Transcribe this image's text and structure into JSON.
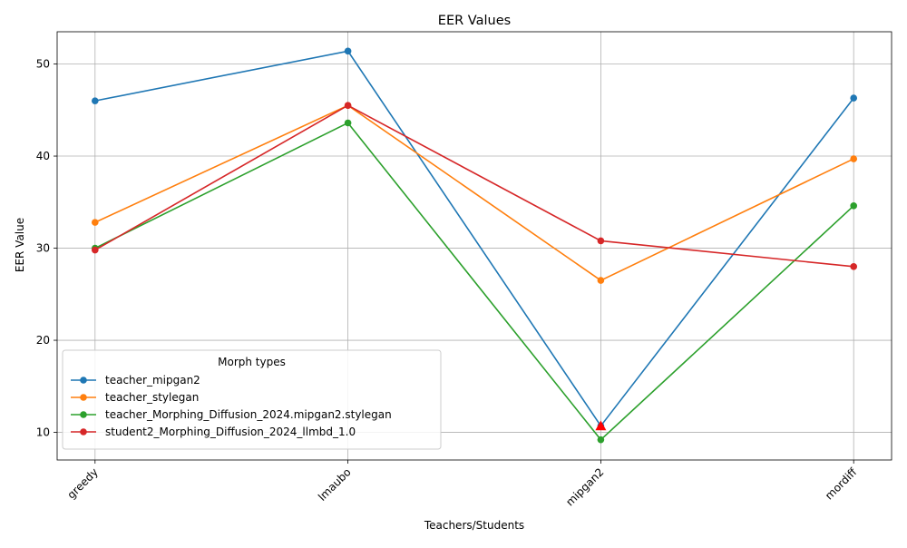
{
  "chart_data": {
    "type": "line",
    "title": "EER Values",
    "xlabel": "Teachers/Students",
    "ylabel": "EER Value",
    "categories": [
      "greedy",
      "lmaubo",
      "mipgan2",
      "mordiff"
    ],
    "ylim": [
      7.0,
      53.5
    ],
    "yticks": [
      10,
      20,
      30,
      40,
      50
    ],
    "grid": true,
    "legend": {
      "title": "Morph types",
      "placement": "lower-left"
    },
    "series": [
      {
        "name": "teacher_mipgan2",
        "color": "#1f77b4",
        "values": [
          46.0,
          51.4,
          10.7,
          46.3
        ]
      },
      {
        "name": "teacher_stylegan",
        "color": "#ff7f0e",
        "values": [
          32.8,
          45.5,
          26.5,
          39.7
        ]
      },
      {
        "name": "teacher_Morphing_Diffusion_2024.mipgan2.stylegan",
        "color": "#2ca02c",
        "values": [
          30.0,
          43.6,
          9.2,
          34.6
        ]
      },
      {
        "name": "student2_Morphing_Diffusion_2024_llmbd_1.0",
        "color": "#d62728",
        "values": [
          29.8,
          45.5,
          30.8,
          28.0
        ]
      }
    ],
    "highlight": {
      "category": "mipgan2",
      "value": 10.7,
      "color": "#ff0000",
      "marker": "triangle"
    }
  }
}
